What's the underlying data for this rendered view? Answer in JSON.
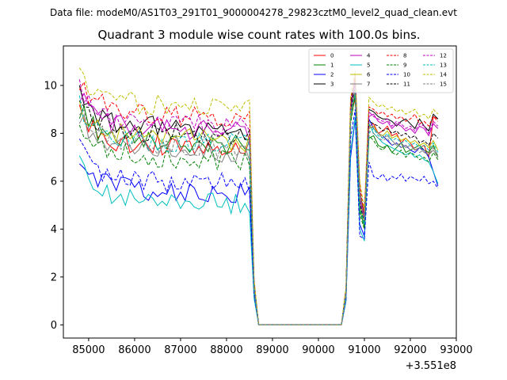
{
  "figure": {
    "suptitle": "Data file: modeM0/AS1T03_291T01_9000004278_29823cztM0_level2_quad_clean.evt"
  },
  "chart_data": {
    "type": "line",
    "title": "Quadrant 3 module wise count rates with 100.0s bins.",
    "xlabel": "",
    "ylabel": "",
    "x_offset_label": "+3.551e8",
    "xlim": [
      84450,
      93000
    ],
    "ylim": [
      -0.55,
      11.65
    ],
    "xticks": [
      85000,
      86000,
      87000,
      88000,
      89000,
      90000,
      91000,
      92000,
      93000
    ],
    "xtick_labels": [
      "85000",
      "86000",
      "87000",
      "88000",
      "89000",
      "90000",
      "91000",
      "92000",
      "93000"
    ],
    "yticks": [
      0,
      2,
      4,
      6,
      8,
      10
    ],
    "ytick_labels": [
      "0",
      "2",
      "4",
      "6",
      "8",
      "10"
    ],
    "legend_position": "top-right",
    "segments": [
      {
        "start": 84800,
        "end": 88600,
        "step": 100
      },
      {
        "start": 88700,
        "end": 90500,
        "step": 100,
        "constant": 0
      },
      {
        "start": 90600,
        "end": 92600,
        "step": 100
      }
    ],
    "series": [
      {
        "name": "0",
        "color": "#ff0000",
        "dash": "solid",
        "base1": 7.6,
        "dropEnd": 1.5,
        "seg3": [
          1.3,
          8.8,
          9.4,
          5.2,
          4.9,
          8.3,
          8.4,
          8.0,
          8.1,
          8.3,
          7.9,
          8.0,
          7.6,
          7.8,
          7.6,
          7.3,
          7.4,
          7.5,
          7.0,
          8.7,
          8.6
        ]
      },
      {
        "name": "1",
        "color": "#008000",
        "dash": "solid",
        "base1": 7.7,
        "dropEnd": 1.6,
        "seg3": [
          1.4,
          8.5,
          9.6,
          4.8,
          4.1,
          7.8,
          7.9,
          7.5,
          7.4,
          7.5,
          7.2,
          7.4,
          7.6,
          7.2,
          7.3,
          7.4,
          7.5,
          7.3,
          7.2,
          7.5,
          7.0
        ]
      },
      {
        "name": "2",
        "color": "#0000ff",
        "dash": "solid",
        "base1": 5.7,
        "dropEnd": 1.3,
        "seg3": [
          1.0,
          7.0,
          8.6,
          4.2,
          3.7,
          8.6,
          8.2,
          8.0,
          7.9,
          7.7,
          7.5,
          7.6,
          7.4,
          7.5,
          7.3,
          7.2,
          7.4,
          7.3,
          7.0,
          6.4,
          5.8
        ]
      },
      {
        "name": "3",
        "color": "#000000",
        "dash": "solid",
        "base1": 8.4,
        "dropEnd": 1.8,
        "seg3": [
          1.5,
          9.2,
          10.3,
          5.6,
          4.5,
          9.0,
          8.9,
          8.7,
          8.6,
          8.6,
          8.5,
          8.3,
          8.5,
          8.6,
          8.4,
          8.2,
          8.6,
          8.3,
          8.1,
          8.8,
          8.6
        ]
      },
      {
        "name": "4",
        "color": "#bf00bf",
        "dash": "solid",
        "base1": 8.3,
        "dropEnd": 1.7,
        "seg3": [
          1.4,
          9.0,
          10.1,
          5.2,
          4.4,
          8.7,
          8.8,
          8.5,
          8.4,
          8.5,
          8.2,
          8.4,
          8.3,
          8.1,
          8.2,
          8.0,
          8.3,
          8.2,
          7.9,
          8.4,
          8.2
        ]
      },
      {
        "name": "5",
        "color": "#00bfbf",
        "dash": "solid",
        "base1": 5.3,
        "dropEnd": 1.1,
        "seg3": [
          1.0,
          7.2,
          8.7,
          4.0,
          3.5,
          8.4,
          8.0,
          7.8,
          7.6,
          7.5,
          7.4,
          7.3,
          7.2,
          7.1,
          7.2,
          7.0,
          7.1,
          6.9,
          6.8,
          6.4,
          5.9
        ]
      },
      {
        "name": "6",
        "color": "#bfbf00",
        "dash": "solid",
        "base1": 7.9,
        "dropEnd": 1.6,
        "seg3": [
          1.3,
          8.6,
          9.8,
          5.0,
          4.3,
          8.2,
          8.3,
          8.0,
          7.9,
          8.1,
          7.8,
          7.9,
          7.7,
          7.8,
          7.6,
          7.7,
          7.5,
          7.6,
          7.4,
          7.7,
          7.3
        ]
      },
      {
        "name": "7",
        "color": "#808080",
        "dash": "solid",
        "base1": 7.4,
        "dropEnd": 1.5,
        "seg3": [
          1.2,
          8.7,
          10.5,
          5.6,
          4.3,
          8.3,
          8.2,
          8.0,
          7.8,
          7.9,
          7.7,
          7.5,
          7.6,
          7.4,
          7.5,
          7.3,
          7.4,
          7.2,
          7.1,
          7.3,
          7.0
        ]
      },
      {
        "name": "8",
        "color": "#ff0000",
        "dash": "dashed",
        "base1": 8.9,
        "dropEnd": 1.8,
        "seg3": [
          1.5,
          9.4,
          10.4,
          5.8,
          4.6,
          9.1,
          9.0,
          8.8,
          8.9,
          8.7,
          8.8,
          8.6,
          8.7,
          8.5,
          8.6,
          8.8,
          8.4,
          8.5,
          8.3,
          8.7,
          8.5
        ]
      },
      {
        "name": "9",
        "color": "#008000",
        "dash": "dashed",
        "base1": 7.1,
        "dropEnd": 1.5,
        "seg3": [
          1.3,
          8.4,
          9.6,
          4.6,
          4.0,
          7.9,
          7.7,
          7.4,
          7.3,
          7.5,
          7.2,
          7.1,
          7.3,
          7.0,
          7.2,
          7.1,
          6.9,
          7.0,
          6.8,
          7.2,
          6.9
        ]
      },
      {
        "name": "10",
        "color": "#0000ff",
        "dash": "dashed",
        "base1": 6.1,
        "dropEnd": 1.3,
        "seg3": [
          1.1,
          7.8,
          9.0,
          3.7,
          3.6,
          6.8,
          6.2,
          6.1,
          6.3,
          6.0,
          6.2,
          6.1,
          6.3,
          6.0,
          6.2,
          6.1,
          6.0,
          6.2,
          5.9,
          6.0,
          5.7
        ]
      },
      {
        "name": "11",
        "color": "#000000",
        "dash": "dashed",
        "base1": 8.1,
        "dropEnd": 1.7,
        "seg3": [
          1.4,
          8.9,
          10.0,
          5.1,
          4.2,
          8.5,
          8.4,
          8.3,
          8.1,
          8.2,
          8.0,
          8.1,
          7.9,
          8.0,
          7.8,
          7.9,
          7.6,
          7.7,
          7.5,
          8.0,
          7.8
        ]
      },
      {
        "name": "12",
        "color": "#bf00bf",
        "dash": "dashed",
        "base1": 8.5,
        "dropEnd": 1.7,
        "seg3": [
          1.4,
          9.1,
          10.2,
          5.3,
          4.5,
          8.9,
          8.7,
          8.6,
          8.5,
          8.6,
          8.3,
          8.5,
          8.4,
          8.2,
          8.3,
          8.1,
          8.4,
          8.3,
          8.0,
          8.5,
          8.3
        ]
      },
      {
        "name": "13",
        "color": "#00bfbf",
        "dash": "dashed",
        "base1": 7.8,
        "dropEnd": 1.6,
        "seg3": [
          1.3,
          8.8,
          9.7,
          4.9,
          4.2,
          8.0,
          8.2,
          7.9,
          7.8,
          8.0,
          7.7,
          7.8,
          7.6,
          7.7,
          7.5,
          7.6,
          7.4,
          7.5,
          7.3,
          7.6,
          7.2
        ]
      },
      {
        "name": "14",
        "color": "#bfbf00",
        "dash": "dashed",
        "base1": 9.3,
        "dropEnd": 1.9,
        "seg3": [
          1.6,
          9.5,
          10.6,
          6.0,
          4.8,
          9.5,
          9.3,
          9.1,
          9.2,
          9.0,
          9.1,
          8.9,
          9.0,
          8.8,
          8.9,
          9.0,
          8.7,
          8.8,
          8.6,
          9.0,
          8.8
        ]
      },
      {
        "name": "15",
        "color": "#808080",
        "dash": "dashed",
        "base1": 7.6,
        "dropEnd": 1.5,
        "seg3": [
          1.2,
          8.6,
          9.9,
          5.4,
          4.4,
          8.1,
          8.0,
          7.8,
          7.7,
          7.8,
          7.5,
          7.6,
          7.4,
          7.5,
          7.3,
          7.4,
          7.2,
          7.3,
          7.1,
          7.4,
          7.1
        ]
      }
    ]
  }
}
